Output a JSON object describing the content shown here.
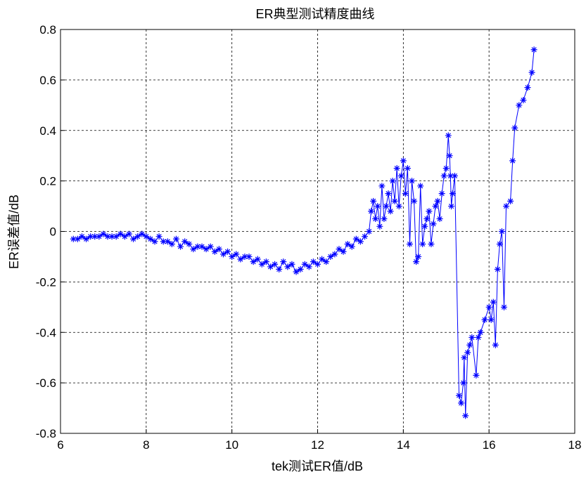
{
  "chart_data": {
    "type": "line",
    "title": "ER典型测试精度曲线",
    "xlabel": "tek测试ER值/dB",
    "ylabel": "ER误差值/dB",
    "xlim": [
      6,
      18
    ],
    "ylim": [
      -0.8,
      0.8
    ],
    "xticks": [
      "6",
      "8",
      "10",
      "12",
      "14",
      "16",
      "18"
    ],
    "yticks": [
      "-0.8",
      "-0.6",
      "-0.4",
      "-0.2",
      "0",
      "0.2",
      "0.4",
      "0.6",
      "0.8"
    ],
    "grid": true,
    "marker": "asterisk",
    "series_color": "#0000ff",
    "series": [
      {
        "x": [
          6.3,
          6.4,
          6.5,
          6.6,
          6.7,
          6.8,
          6.9,
          7.0,
          7.1,
          7.2,
          7.3,
          7.4,
          7.5,
          7.6,
          7.7,
          7.8,
          7.9,
          8.0,
          8.1,
          8.2,
          8.3,
          8.4,
          8.5,
          8.6,
          8.7,
          8.8,
          8.9,
          9.0,
          9.1,
          9.2,
          9.3,
          9.4,
          9.5,
          9.6,
          9.7,
          9.8,
          9.9,
          10.0,
          10.1,
          10.2,
          10.3,
          10.4,
          10.5,
          10.6,
          10.7,
          10.8,
          10.9,
          11.0,
          11.1,
          11.2,
          11.3,
          11.4,
          11.5,
          11.6,
          11.7,
          11.8,
          11.9,
          12.0,
          12.1,
          12.2,
          12.3,
          12.4,
          12.5,
          12.6,
          12.7,
          12.8,
          12.9,
          13.0,
          13.1,
          13.2,
          13.25,
          13.3,
          13.35,
          13.4,
          13.45,
          13.5,
          13.55,
          13.6,
          13.65,
          13.7,
          13.75,
          13.8,
          13.85,
          13.9,
          13.95,
          14.0,
          14.05,
          14.1,
          14.15,
          14.2,
          14.25,
          14.3,
          14.35,
          14.4,
          14.45,
          14.5,
          14.55,
          14.6,
          14.65,
          14.7,
          14.75,
          14.8,
          14.85,
          14.9,
          14.95,
          15.0,
          15.05,
          15.08,
          15.1,
          15.12,
          15.15,
          15.2,
          15.3,
          15.35,
          15.4,
          15.42,
          15.45,
          15.5,
          15.55,
          15.6,
          15.7,
          15.75,
          15.8,
          15.9,
          16.0,
          16.05,
          16.1,
          16.15,
          16.2,
          16.25,
          16.3,
          16.35,
          16.4,
          16.5,
          16.55,
          16.6,
          16.7,
          16.8,
          16.9,
          17.0,
          17.05
        ],
        "y": [
          -0.03,
          -0.03,
          -0.02,
          -0.03,
          -0.02,
          -0.02,
          -0.02,
          -0.01,
          -0.02,
          -0.02,
          -0.02,
          -0.01,
          -0.02,
          -0.01,
          -0.03,
          -0.02,
          -0.01,
          -0.02,
          -0.03,
          -0.04,
          -0.02,
          -0.04,
          -0.04,
          -0.05,
          -0.03,
          -0.06,
          -0.04,
          -0.05,
          -0.07,
          -0.06,
          -0.06,
          -0.07,
          -0.06,
          -0.08,
          -0.07,
          -0.09,
          -0.08,
          -0.1,
          -0.09,
          -0.11,
          -0.1,
          -0.1,
          -0.12,
          -0.11,
          -0.13,
          -0.12,
          -0.14,
          -0.13,
          -0.15,
          -0.12,
          -0.14,
          -0.13,
          -0.16,
          -0.15,
          -0.13,
          -0.14,
          -0.12,
          -0.13,
          -0.11,
          -0.12,
          -0.1,
          -0.09,
          -0.07,
          -0.08,
          -0.05,
          -0.06,
          -0.03,
          -0.04,
          -0.02,
          0.0,
          0.08,
          0.12,
          0.05,
          0.1,
          0.02,
          0.18,
          0.05,
          0.1,
          0.15,
          0.08,
          0.2,
          0.12,
          0.25,
          0.1,
          0.22,
          0.28,
          0.15,
          0.25,
          -0.05,
          0.2,
          0.12,
          -0.12,
          -0.1,
          0.18,
          -0.05,
          0.02,
          0.05,
          0.08,
          -0.05,
          0.03,
          0.1,
          0.12,
          0.05,
          0.15,
          0.22,
          0.25,
          0.38,
          0.3,
          0.22,
          0.1,
          0.15,
          0.22,
          -0.65,
          -0.68,
          -0.6,
          -0.5,
          -0.73,
          -0.48,
          -0.45,
          -0.42,
          -0.57,
          -0.42,
          -0.4,
          -0.35,
          -0.3,
          -0.35,
          -0.28,
          -0.45,
          -0.15,
          -0.05,
          0.0,
          -0.3,
          0.1,
          0.12,
          0.28,
          0.41,
          0.5,
          0.52,
          0.57,
          0.63,
          0.72
        ]
      }
    ]
  }
}
